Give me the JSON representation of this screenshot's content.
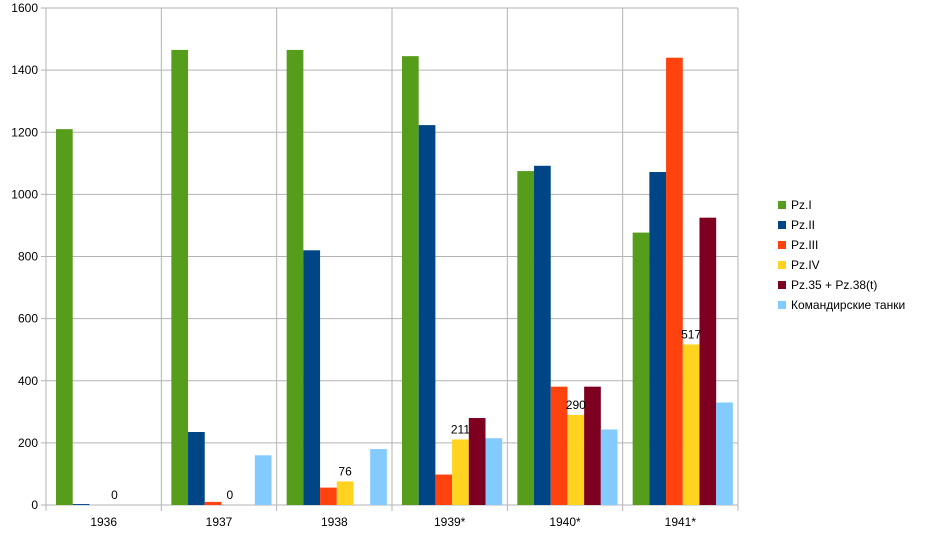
{
  "chart_data": {
    "type": "bar",
    "categories": [
      "1936",
      "1937",
      "1938",
      "1939*",
      "1940*",
      "1941*"
    ],
    "series": [
      {
        "name": "Pz.I",
        "color": "#579d1c",
        "values": [
          1210,
          1465,
          1465,
          1445,
          1075,
          877
        ]
      },
      {
        "name": "Pz.II",
        "color": "#004586",
        "values": [
          3,
          235,
          820,
          1223,
          1092,
          1072
        ]
      },
      {
        "name": "Pz.III",
        "color": "#ff420e",
        "values": [
          0,
          10,
          56,
          98,
          381,
          1440
        ]
      },
      {
        "name": "Pz.IV",
        "color": "#ffd320",
        "values": [
          0,
          0,
          76,
          211,
          290,
          517
        ]
      },
      {
        "name": "Pz.35 + Pz.38(t)",
        "color": "#7e0021",
        "values": [
          0,
          0,
          0,
          280,
          381,
          925
        ]
      },
      {
        "name": "Командирские танки",
        "color": "#83caff",
        "values": [
          0,
          160,
          180,
          215,
          243,
          330
        ]
      }
    ],
    "data_labels": [
      {
        "series": 3,
        "category": 0,
        "text": "0"
      },
      {
        "series": 3,
        "category": 1,
        "text": "0"
      },
      {
        "series": 3,
        "category": 2,
        "text": "76"
      },
      {
        "series": 3,
        "category": 3,
        "text": "211"
      },
      {
        "series": 3,
        "category": 4,
        "text": "290"
      },
      {
        "series": 3,
        "category": 5,
        "text": "517"
      }
    ],
    "y_ticks": [
      "0",
      "200",
      "400",
      "600",
      "800",
      "1000",
      "1200",
      "1400",
      "1600"
    ],
    "ylim": [
      0,
      1600
    ],
    "grid": true,
    "legend_position": "right",
    "title": "",
    "xlabel": "",
    "ylabel": ""
  }
}
